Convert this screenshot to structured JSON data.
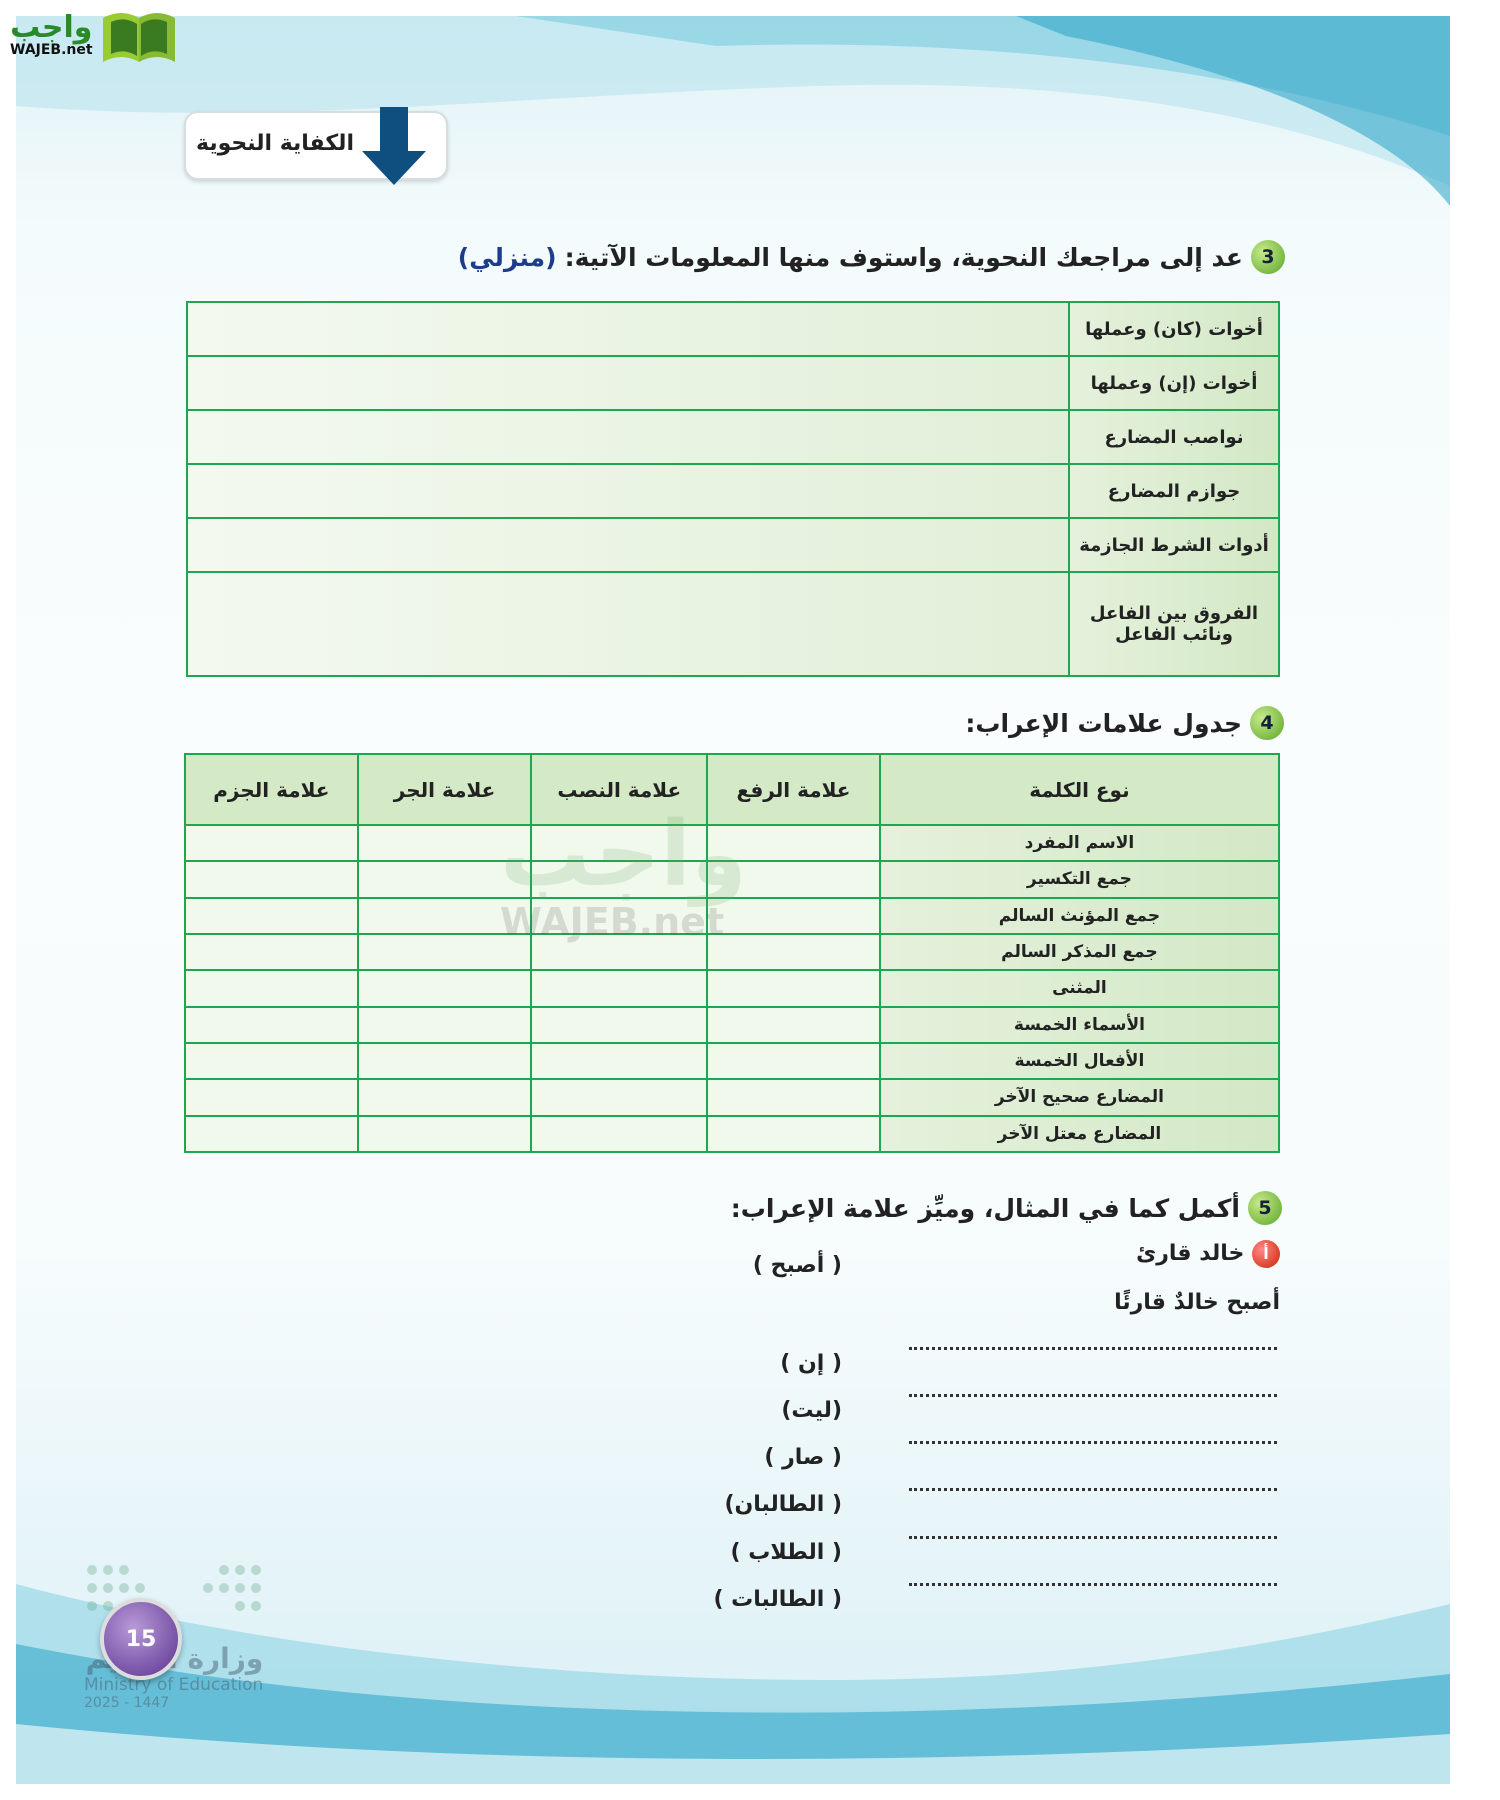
{
  "brand": {
    "logo_ar": "واجب",
    "logo_en": "WAJEB.net"
  },
  "header": {
    "title": "الكفاية النحوية"
  },
  "q3": {
    "number": "3",
    "text": "عد إلى مراجعك النحوية، واستوف منها المعلومات الآتية:",
    "tag": "(منزلي)",
    "rows": [
      "أخوات (كان) وعملها",
      "أخوات (إن) وعملها",
      "نواصب المضارع",
      "جوازم المضارع",
      "أدوات الشرط الجازمة",
      "الفروق بين الفاعل ونائب الفاعل"
    ]
  },
  "q4": {
    "number": "4",
    "text": "جدول علامات الإعراب:",
    "headers": [
      "نوع الكلمة",
      "علامة الرفع",
      "علامة النصب",
      "علامة الجر",
      "علامة الجزم"
    ],
    "rows": [
      "الاسم المفرد",
      "جمع التكسير",
      "جمع المؤنث السالم",
      "جمع المذكر السالم",
      "المثنى",
      "الأسماء الخمسة",
      "الأفعال الخمسة",
      "المضارع صحيح الآخر",
      "المضارع معتل الآخر"
    ]
  },
  "q5": {
    "number": "5",
    "text": "أكمل كما في المثال، وميِّز علامة الإعراب:",
    "item_letter": "أ",
    "example": "خالد قارئ",
    "example_option": "( أصبح )",
    "example_answer": "أصبح خالدٌ قارئًا",
    "options": [
      "( إن )",
      "(ليت)",
      "( صار )",
      "( الطالبان)",
      "( الطلاب )",
      "( الطالبات )"
    ]
  },
  "footer": {
    "page_number": "15",
    "ministry_ar": "وزارة التعليم",
    "ministry_en": "Ministry of Education",
    "year": "2025 - 1447"
  },
  "colors": {
    "table_border": "#1fa651",
    "accent_blue": "#1e3c8c",
    "page_badge": "#5b3290"
  }
}
